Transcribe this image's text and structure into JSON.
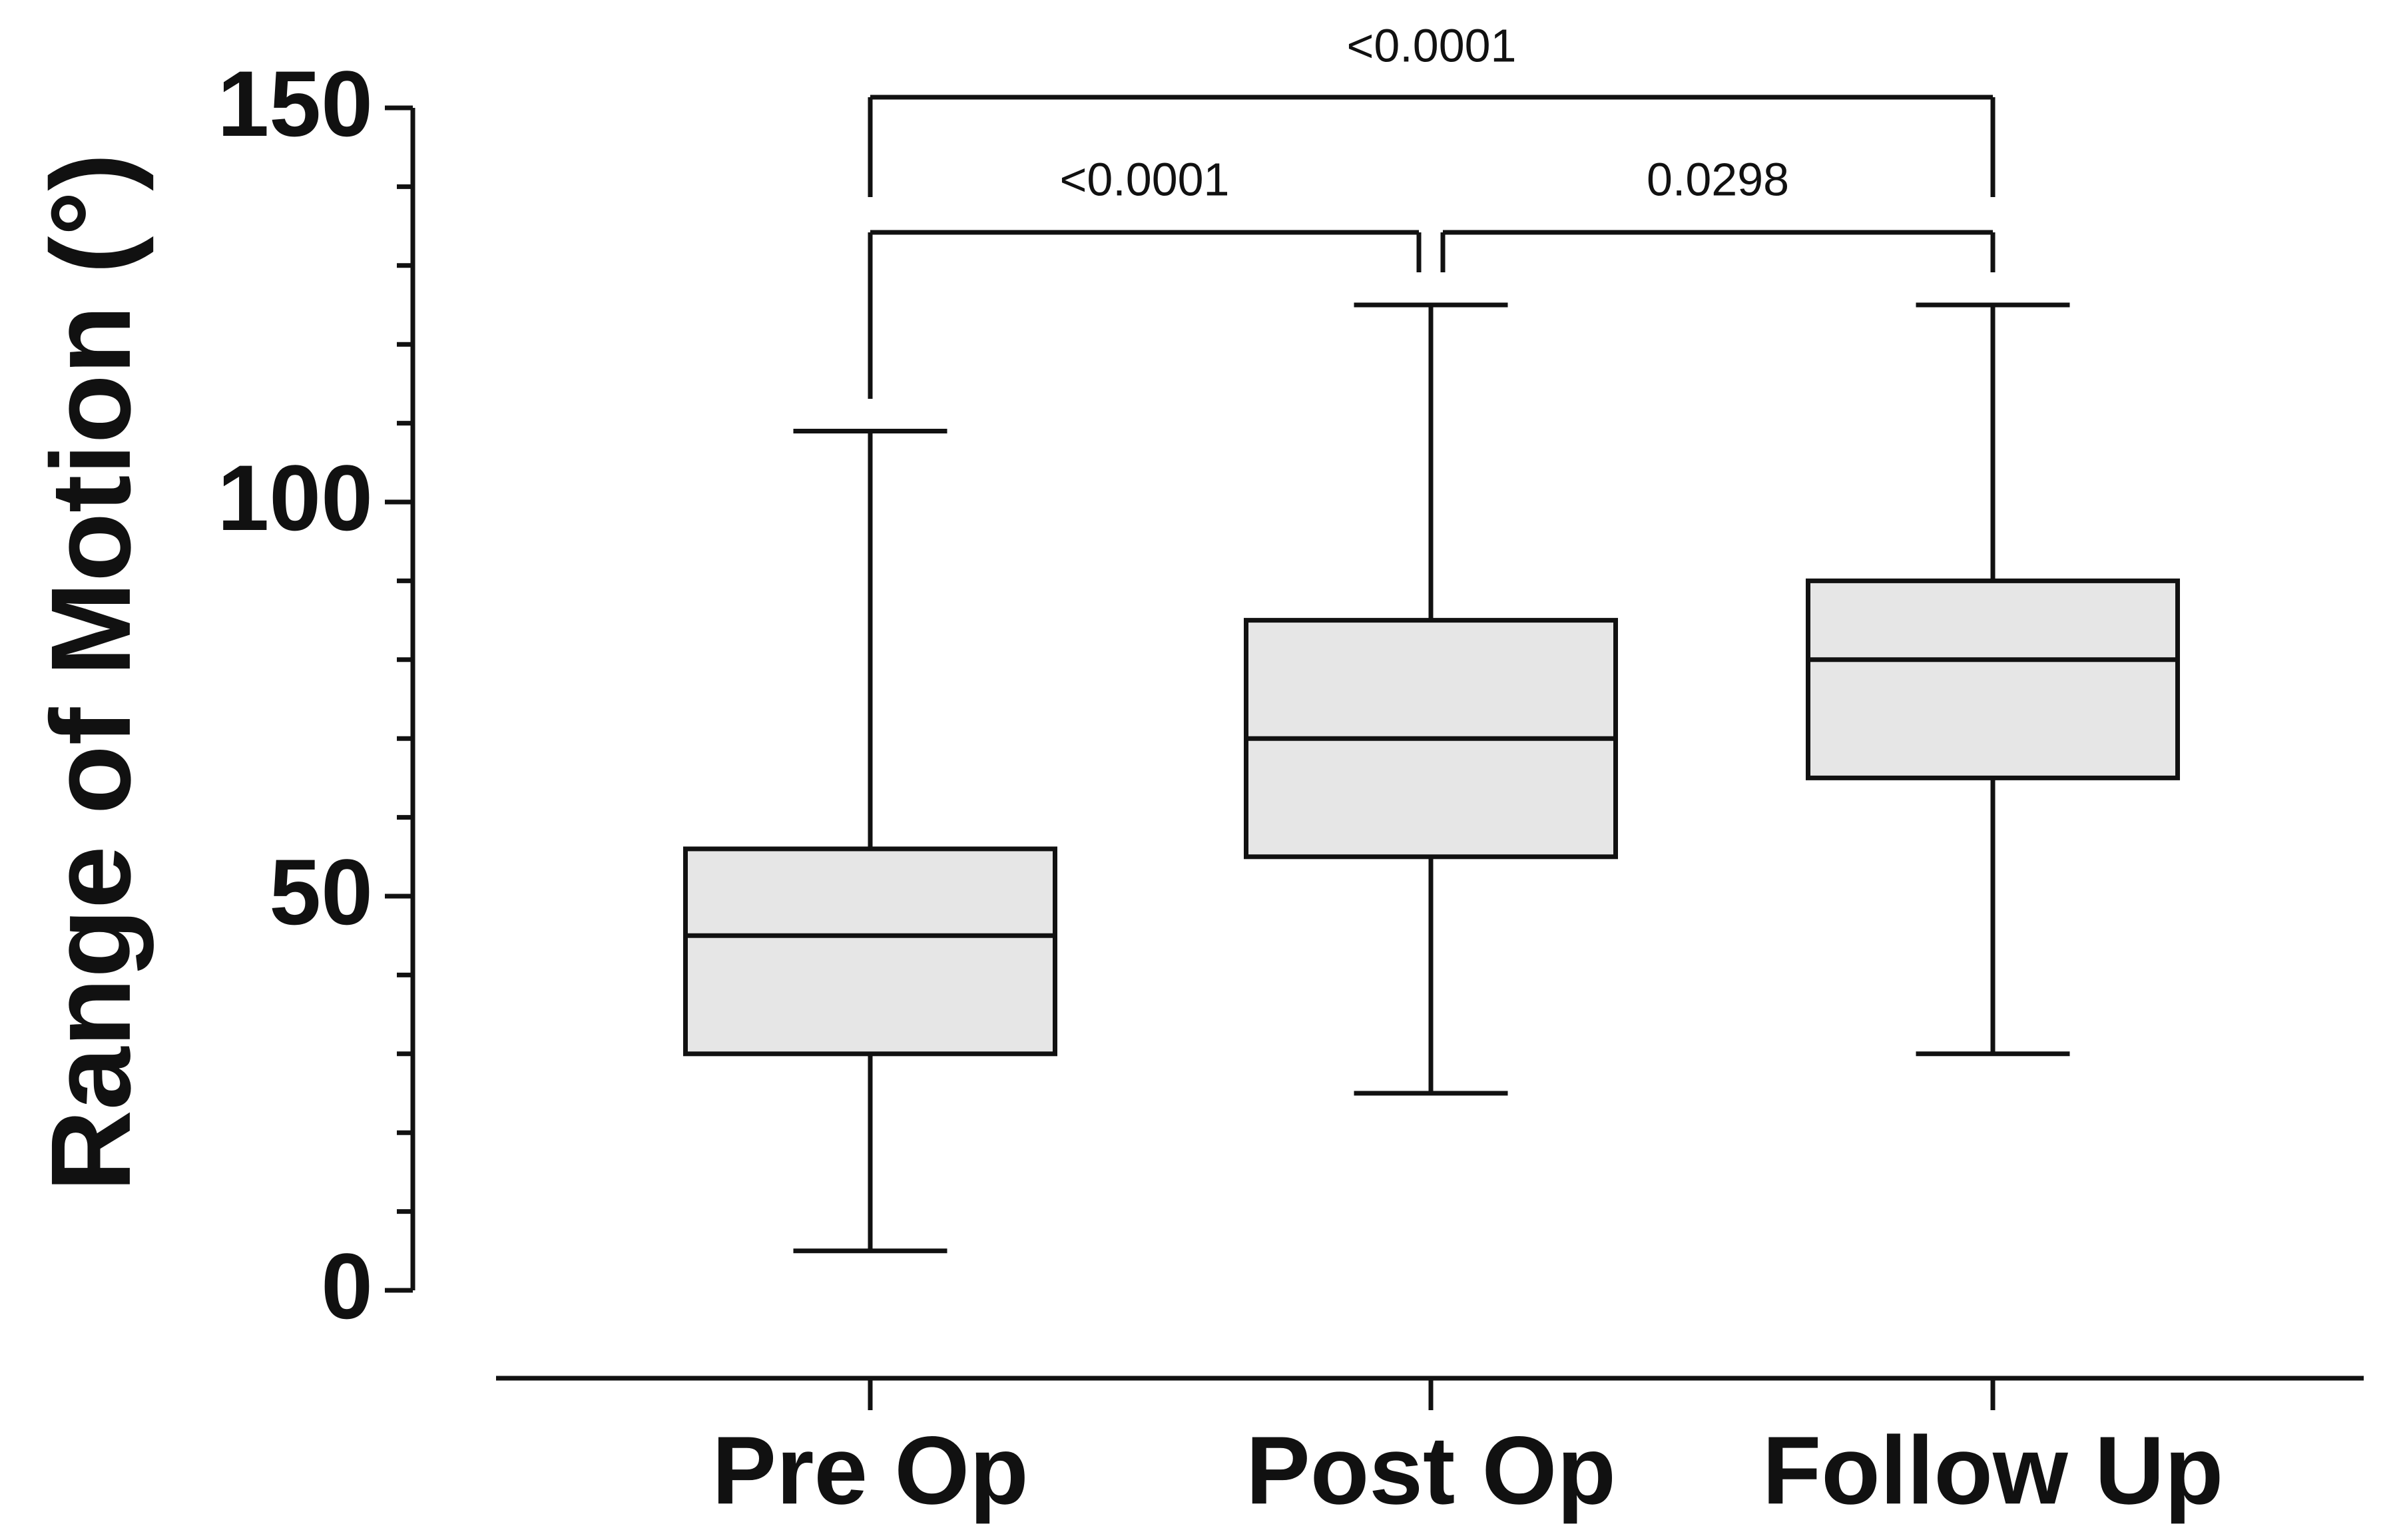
{
  "chart_data": {
    "type": "box",
    "y_label": "Range of Motion (°)",
    "categories": [
      "Pre Op",
      "Post Op",
      "Follow Up"
    ],
    "boxes": [
      {
        "min": 5,
        "q1": 30,
        "median": 45,
        "q3": 56,
        "max": 109
      },
      {
        "min": 25,
        "q1": 55,
        "median": 70,
        "q3": 85,
        "max": 125
      },
      {
        "min": 30,
        "q1": 65,
        "median": 80,
        "q3": 90,
        "max": 125
      }
    ],
    "color": "#e6e6e6",
    "ylim": [
      0,
      150
    ],
    "yticks": [
      0,
      50,
      100,
      150
    ],
    "comparisons": [
      {
        "groups": [
          "Pre Op",
          "Follow Up"
        ],
        "label": "<0.0001"
      },
      {
        "groups": [
          "Pre Op",
          "Post Op"
        ],
        "label": "<0.0001"
      },
      {
        "groups": [
          "Post Op",
          "Follow Up"
        ],
        "label": "0.0298"
      }
    ]
  }
}
